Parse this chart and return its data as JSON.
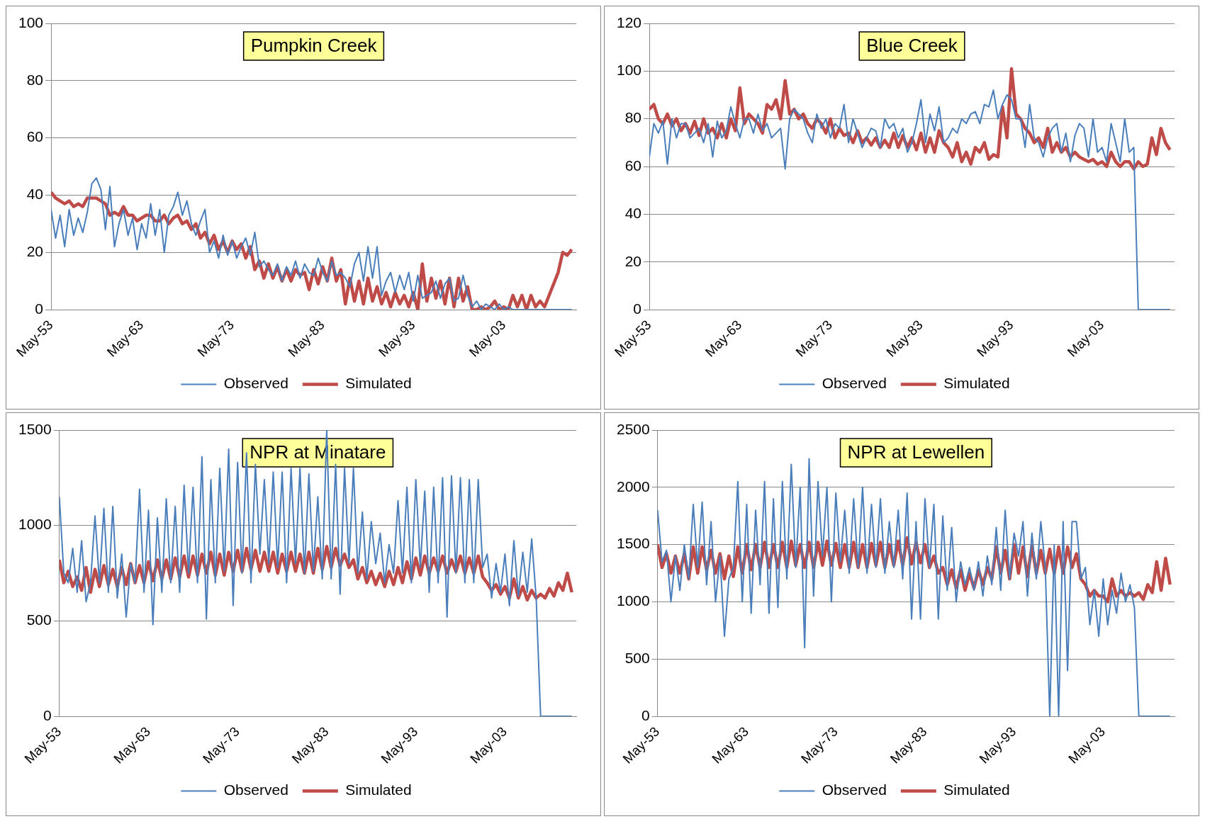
{
  "chart_data": [
    {
      "type": "line",
      "title": "Pumpkin Creek",
      "legend": "bottom",
      "grid": "y",
      "x": [
        "1953-05",
        "1953-11",
        "1954-05",
        "1954-11",
        "1955-05",
        "1955-11",
        "1956-05",
        "1956-11",
        "1957-05",
        "1957-11",
        "1958-05",
        "1958-11",
        "1959-05",
        "1959-11",
        "1960-05",
        "1960-11",
        "1961-05",
        "1961-11",
        "1962-05",
        "1962-11",
        "1963-05",
        "1963-11",
        "1964-05",
        "1964-11",
        "1965-05",
        "1965-11",
        "1966-05",
        "1966-11",
        "1967-05",
        "1967-11",
        "1968-05",
        "1968-11",
        "1969-05",
        "1969-11",
        "1970-05",
        "1970-11",
        "1971-05",
        "1971-11",
        "1972-05",
        "1972-11",
        "1973-05",
        "1973-11",
        "1974-05",
        "1974-11",
        "1975-05",
        "1975-11",
        "1976-05",
        "1976-11",
        "1977-05",
        "1977-11",
        "1978-05",
        "1978-11",
        "1979-05",
        "1979-11",
        "1980-05",
        "1980-11",
        "1981-05",
        "1981-11",
        "1982-05",
        "1982-11",
        "1983-05",
        "1983-11",
        "1984-05",
        "1984-11",
        "1985-05",
        "1985-11",
        "1986-05",
        "1986-11",
        "1987-05",
        "1987-11",
        "1988-05",
        "1988-11",
        "1989-05",
        "1989-11",
        "1990-05",
        "1990-11",
        "1991-05",
        "1991-11",
        "1992-05",
        "1992-11",
        "1993-05",
        "1993-11",
        "1994-05",
        "1994-11",
        "1995-05",
        "1995-11",
        "1996-05",
        "1996-11",
        "1997-05",
        "1997-11",
        "1998-05",
        "1998-11",
        "1999-05",
        "1999-11",
        "2000-05",
        "2000-11",
        "2001-05",
        "2001-11",
        "2002-05",
        "2002-11",
        "2003-05",
        "2003-11",
        "2004-05",
        "2004-11",
        "2005-05",
        "2005-11",
        "2006-05",
        "2006-11",
        "2007-05",
        "2007-11",
        "2008-05",
        "2008-11",
        "2009-05",
        "2009-11",
        "2010-05",
        "2010-11"
      ],
      "xlim": [
        "1953-05",
        "2011-05"
      ],
      "xticks": [
        {
          "value": "1953-05",
          "label": "May-53"
        },
        {
          "value": "1963-05",
          "label": "May-63"
        },
        {
          "value": "1973-05",
          "label": "May-73"
        },
        {
          "value": "1983-05",
          "label": "May-83"
        },
        {
          "value": "1993-05",
          "label": "May-93"
        },
        {
          "value": "2003-05",
          "label": "May-03"
        }
      ],
      "ylim": [
        0,
        100
      ],
      "yticks": [
        0,
        20,
        40,
        60,
        80,
        100
      ],
      "series": [
        {
          "name": "Observed",
          "color": "#4a7ebb",
          "values": [
            35,
            25,
            33,
            22,
            35,
            26,
            32,
            27,
            34,
            44,
            46,
            42,
            28,
            43,
            22,
            30,
            35,
            26,
            32,
            21,
            30,
            25,
            37,
            26,
            35,
            20,
            33,
            36,
            41,
            33,
            38,
            30,
            26,
            31,
            35,
            20,
            24,
            18,
            26,
            19,
            24,
            18,
            22,
            25,
            19,
            27,
            15,
            17,
            14,
            12,
            16,
            10,
            15,
            12,
            17,
            11,
            16,
            13,
            12,
            18,
            13,
            10,
            17,
            12,
            13,
            11,
            8,
            16,
            20,
            10,
            22,
            11,
            22,
            5,
            10,
            13,
            6,
            12,
            7,
            13,
            3,
            12,
            4,
            5,
            6,
            10,
            4,
            9,
            11,
            3,
            4,
            12,
            5,
            1,
            3,
            0,
            2,
            1,
            0,
            2,
            0,
            1,
            0,
            0,
            0,
            0,
            0,
            0,
            0,
            0,
            0,
            0,
            0,
            0,
            0,
            0
          ]
        },
        {
          "name": "Simulated",
          "color": "#be4b48",
          "values": [
            41,
            39,
            38,
            37,
            38,
            36,
            37,
            36,
            39,
            39,
            39,
            38,
            37,
            33,
            34,
            33,
            36,
            33,
            33,
            31,
            32,
            33,
            33,
            31,
            31,
            33,
            30,
            32,
            33,
            30,
            31,
            28,
            30,
            25,
            27,
            23,
            26,
            21,
            24,
            20,
            24,
            21,
            23,
            18,
            22,
            14,
            17,
            11,
            16,
            11,
            15,
            10,
            14,
            10,
            14,
            12,
            13,
            7,
            14,
            9,
            15,
            10,
            18,
            10,
            14,
            2,
            11,
            3,
            10,
            2,
            11,
            3,
            8,
            2,
            6,
            1,
            6,
            2,
            5,
            1,
            6,
            0,
            16,
            3,
            11,
            4,
            10,
            2,
            11,
            1,
            11,
            3,
            8,
            0,
            0,
            1,
            0,
            1,
            3,
            0,
            1,
            0,
            5,
            1,
            5,
            0,
            5,
            1,
            3,
            1,
            5,
            9,
            13,
            20,
            19,
            21
          ]
        }
      ]
    },
    {
      "type": "line",
      "title": "Blue Creek",
      "legend": "bottom",
      "grid": "y",
      "x": [
        "1953-05",
        "1953-11",
        "1954-05",
        "1954-11",
        "1955-05",
        "1955-11",
        "1956-05",
        "1956-11",
        "1957-05",
        "1957-11",
        "1958-05",
        "1958-11",
        "1959-05",
        "1959-11",
        "1960-05",
        "1960-11",
        "1961-05",
        "1961-11",
        "1962-05",
        "1962-11",
        "1963-05",
        "1963-11",
        "1964-05",
        "1964-11",
        "1965-05",
        "1965-11",
        "1966-05",
        "1966-11",
        "1967-05",
        "1967-11",
        "1968-05",
        "1968-11",
        "1969-05",
        "1969-11",
        "1970-05",
        "1970-11",
        "1971-05",
        "1971-11",
        "1972-05",
        "1972-11",
        "1973-05",
        "1973-11",
        "1974-05",
        "1974-11",
        "1975-05",
        "1975-11",
        "1976-05",
        "1976-11",
        "1977-05",
        "1977-11",
        "1978-05",
        "1978-11",
        "1979-05",
        "1979-11",
        "1980-05",
        "1980-11",
        "1981-05",
        "1981-11",
        "1982-05",
        "1982-11",
        "1983-05",
        "1983-11",
        "1984-05",
        "1984-11",
        "1985-05",
        "1985-11",
        "1986-05",
        "1986-11",
        "1987-05",
        "1987-11",
        "1988-05",
        "1988-11",
        "1989-05",
        "1989-11",
        "1990-05",
        "1990-11",
        "1991-05",
        "1991-11",
        "1992-05",
        "1992-11",
        "1993-05",
        "1993-11",
        "1994-05",
        "1994-11",
        "1995-05",
        "1995-11",
        "1996-05",
        "1996-11",
        "1997-05",
        "1997-11",
        "1998-05",
        "1998-11",
        "1999-05",
        "1999-11",
        "2000-05",
        "2000-11",
        "2001-05",
        "2001-11",
        "2002-05",
        "2002-11",
        "2003-05",
        "2003-11",
        "2004-05",
        "2004-11",
        "2005-05",
        "2005-11",
        "2006-05",
        "2006-11",
        "2007-05",
        "2007-11",
        "2008-05",
        "2008-11",
        "2009-05",
        "2009-11",
        "2010-05",
        "2010-11"
      ],
      "xlim": [
        "1953-05",
        "2011-05"
      ],
      "xticks": [
        {
          "value": "1953-05",
          "label": "May-53"
        },
        {
          "value": "1963-05",
          "label": "May-63"
        },
        {
          "value": "1973-05",
          "label": "May-73"
        },
        {
          "value": "1983-05",
          "label": "May-83"
        },
        {
          "value": "1993-05",
          "label": "May-93"
        },
        {
          "value": "2003-05",
          "label": "May-03"
        }
      ],
      "ylim": [
        0,
        120
      ],
      "yticks": [
        0,
        20,
        40,
        60,
        80,
        100,
        120
      ],
      "series": [
        {
          "name": "Observed",
          "color": "#4a7ebb",
          "values": [
            64,
            78,
            74,
            79,
            61,
            80,
            72,
            78,
            78,
            72,
            74,
            76,
            70,
            78,
            64,
            79,
            72,
            75,
            85,
            78,
            72,
            80,
            80,
            74,
            82,
            75,
            78,
            72,
            74,
            76,
            59,
            80,
            84,
            82,
            80,
            74,
            70,
            82,
            76,
            80,
            72,
            78,
            76,
            86,
            70,
            80,
            74,
            68,
            72,
            76,
            75,
            68,
            80,
            76,
            78,
            72,
            76,
            66,
            70,
            78,
            88,
            70,
            82,
            75,
            85,
            70,
            72,
            76,
            74,
            80,
            78,
            82,
            83,
            78,
            86,
            85,
            92,
            80,
            86,
            90,
            88,
            80,
            80,
            68,
            86,
            72,
            70,
            64,
            72,
            76,
            78,
            66,
            74,
            62,
            73,
            78,
            76,
            64,
            80,
            66,
            68,
            62,
            78,
            70,
            62,
            80,
            66,
            68,
            0,
            0,
            0,
            0,
            0,
            0,
            0,
            0
          ]
        },
        {
          "name": "Simulated",
          "color": "#be4b48",
          "values": [
            84,
            86,
            80,
            78,
            82,
            77,
            80,
            75,
            78,
            74,
            79,
            73,
            80,
            74,
            76,
            72,
            78,
            72,
            80,
            75,
            93,
            78,
            82,
            80,
            78,
            74,
            86,
            84,
            88,
            80,
            96,
            82,
            84,
            80,
            82,
            78,
            76,
            80,
            78,
            74,
            80,
            72,
            76,
            73,
            74,
            70,
            75,
            70,
            72,
            69,
            72,
            68,
            71,
            68,
            74,
            68,
            73,
            68,
            72,
            67,
            74,
            66,
            72,
            66,
            75,
            70,
            68,
            64,
            70,
            62,
            66,
            61,
            68,
            66,
            70,
            63,
            65,
            64,
            85,
            72,
            101,
            82,
            80,
            76,
            74,
            70,
            72,
            68,
            76,
            66,
            70,
            66,
            68,
            64,
            66,
            64,
            63,
            62,
            63,
            61,
            62,
            60,
            66,
            62,
            60,
            62,
            62,
            59,
            62,
            60,
            61,
            72,
            65,
            76,
            70,
            67
          ]
        }
      ]
    },
    {
      "type": "line",
      "title": "NPR at Minatare",
      "legend": "bottom",
      "grid": "y",
      "x": [
        "1953-05",
        "1953-11",
        "1954-05",
        "1954-11",
        "1955-05",
        "1955-11",
        "1956-05",
        "1956-11",
        "1957-05",
        "1957-11",
        "1958-05",
        "1958-11",
        "1959-05",
        "1959-11",
        "1960-05",
        "1960-11",
        "1961-05",
        "1961-11",
        "1962-05",
        "1962-11",
        "1963-05",
        "1963-11",
        "1964-05",
        "1964-11",
        "1965-05",
        "1965-11",
        "1966-05",
        "1966-11",
        "1967-05",
        "1967-11",
        "1968-05",
        "1968-11",
        "1969-05",
        "1969-11",
        "1970-05",
        "1970-11",
        "1971-05",
        "1971-11",
        "1972-05",
        "1972-11",
        "1973-05",
        "1973-11",
        "1974-05",
        "1974-11",
        "1975-05",
        "1975-11",
        "1976-05",
        "1976-11",
        "1977-05",
        "1977-11",
        "1978-05",
        "1978-11",
        "1979-05",
        "1979-11",
        "1980-05",
        "1980-11",
        "1981-05",
        "1981-11",
        "1982-05",
        "1982-11",
        "1983-05",
        "1983-11",
        "1984-05",
        "1984-11",
        "1985-05",
        "1985-11",
        "1986-05",
        "1986-11",
        "1987-05",
        "1987-11",
        "1988-05",
        "1988-11",
        "1989-05",
        "1989-11",
        "1990-05",
        "1990-11",
        "1991-05",
        "1991-11",
        "1992-05",
        "1992-11",
        "1993-05",
        "1993-11",
        "1994-05",
        "1994-11",
        "1995-05",
        "1995-11",
        "1996-05",
        "1996-11",
        "1997-05",
        "1997-11",
        "1998-05",
        "1998-11",
        "1999-05",
        "1999-11",
        "2000-05",
        "2000-11",
        "2001-05",
        "2001-11",
        "2002-05",
        "2002-11",
        "2003-05",
        "2003-11",
        "2004-05",
        "2004-11",
        "2005-05",
        "2005-11",
        "2006-05",
        "2006-11",
        "2007-05",
        "2007-11",
        "2008-05",
        "2008-11",
        "2009-05",
        "2009-11",
        "2010-05",
        "2010-11"
      ],
      "xlim": [
        "1953-05",
        "2011-05"
      ],
      "xticks": [
        {
          "value": "1953-05",
          "label": "May-53"
        },
        {
          "value": "1963-05",
          "label": "May-63"
        },
        {
          "value": "1973-05",
          "label": "May-73"
        },
        {
          "value": "1983-05",
          "label": "May-83"
        },
        {
          "value": "1993-05",
          "label": "May-93"
        },
        {
          "value": "2003-05",
          "label": "May-03"
        }
      ],
      "ylim": [
        0,
        1500
      ],
      "yticks": [
        0,
        500,
        1000,
        1500
      ],
      "series": [
        {
          "name": "Observed",
          "color": "#4a7ebb",
          "values": [
            1150,
            750,
            700,
            880,
            650,
            920,
            600,
            700,
            1050,
            700,
            1090,
            650,
            1100,
            620,
            850,
            520,
            800,
            700,
            1190,
            650,
            1080,
            480,
            1040,
            650,
            1140,
            700,
            1100,
            650,
            1210,
            750,
            1200,
            700,
            1360,
            510,
            1240,
            700,
            1300,
            760,
            1400,
            580,
            1330,
            750,
            1380,
            700,
            1320,
            850,
            1240,
            800,
            1280,
            780,
            1280,
            700,
            1300,
            800,
            1300,
            750,
            1270,
            760,
            1150,
            720,
            1500,
            720,
            1320,
            640,
            1300,
            800,
            1300,
            750,
            1070,
            720,
            1020,
            800,
            960,
            700,
            900,
            750,
            1130,
            750,
            1200,
            700,
            1240,
            780,
            1180,
            650,
            1200,
            700,
            1250,
            520,
            1260,
            750,
            1250,
            700,
            1240,
            700,
            1240,
            780,
            850,
            620,
            800,
            650,
            850,
            580,
            920,
            630,
            860,
            650,
            930,
            620,
            0,
            0,
            0,
            0,
            0,
            0,
            0,
            0
          ]
        },
        {
          "name": "Simulated",
          "color": "#be4b48",
          "values": [
            820,
            700,
            760,
            680,
            730,
            660,
            780,
            650,
            770,
            680,
            790,
            690,
            770,
            680,
            780,
            690,
            800,
            700,
            790,
            700,
            810,
            710,
            820,
            720,
            820,
            720,
            830,
            730,
            840,
            730,
            840,
            740,
            850,
            750,
            860,
            740,
            850,
            740,
            860,
            760,
            870,
            760,
            880,
            770,
            870,
            760,
            860,
            760,
            860,
            750,
            850,
            760,
            860,
            760,
            850,
            750,
            860,
            750,
            880,
            770,
            890,
            780,
            880,
            790,
            850,
            780,
            820,
            720,
            780,
            700,
            760,
            690,
            750,
            680,
            760,
            690,
            780,
            700,
            810,
            720,
            830,
            740,
            840,
            750,
            830,
            760,
            840,
            750,
            820,
            760,
            840,
            750,
            830,
            750,
            840,
            730,
            700,
            660,
            690,
            640,
            680,
            620,
            720,
            620,
            680,
            610,
            660,
            620,
            640,
            620,
            670,
            630,
            700,
            660,
            750,
            650
          ]
        }
      ]
    },
    {
      "type": "line",
      "title": "NPR at Lewellen",
      "legend": "bottom",
      "grid": "y",
      "x": [
        "1953-05",
        "1953-11",
        "1954-05",
        "1954-11",
        "1955-05",
        "1955-11",
        "1956-05",
        "1956-11",
        "1957-05",
        "1957-11",
        "1958-05",
        "1958-11",
        "1959-05",
        "1959-11",
        "1960-05",
        "1960-11",
        "1961-05",
        "1961-11",
        "1962-05",
        "1962-11",
        "1963-05",
        "1963-11",
        "1964-05",
        "1964-11",
        "1965-05",
        "1965-11",
        "1966-05",
        "1966-11",
        "1967-05",
        "1967-11",
        "1968-05",
        "1968-11",
        "1969-05",
        "1969-11",
        "1970-05",
        "1970-11",
        "1971-05",
        "1971-11",
        "1972-05",
        "1972-11",
        "1973-05",
        "1973-11",
        "1974-05",
        "1974-11",
        "1975-05",
        "1975-11",
        "1976-05",
        "1976-11",
        "1977-05",
        "1977-11",
        "1978-05",
        "1978-11",
        "1979-05",
        "1979-11",
        "1980-05",
        "1980-11",
        "1981-05",
        "1981-11",
        "1982-05",
        "1982-11",
        "1983-05",
        "1983-11",
        "1984-05",
        "1984-11",
        "1985-05",
        "1985-11",
        "1986-05",
        "1986-11",
        "1987-05",
        "1987-11",
        "1988-05",
        "1988-11",
        "1989-05",
        "1989-11",
        "1990-05",
        "1990-11",
        "1991-05",
        "1991-11",
        "1992-05",
        "1992-11",
        "1993-05",
        "1993-11",
        "1994-05",
        "1994-11",
        "1995-05",
        "1995-11",
        "1996-05",
        "1996-11",
        "1997-05",
        "1997-11",
        "1998-05",
        "1998-11",
        "1999-05",
        "1999-11",
        "2000-05",
        "2000-11",
        "2001-05",
        "2001-11",
        "2002-05",
        "2002-11",
        "2003-05",
        "2003-11",
        "2004-05",
        "2004-11",
        "2005-05",
        "2005-11",
        "2006-05",
        "2006-11",
        "2007-05",
        "2007-11",
        "2008-05",
        "2008-11",
        "2009-05",
        "2009-11",
        "2010-05",
        "2010-11"
      ],
      "xlim": [
        "1953-05",
        "2011-05"
      ],
      "xticks": [
        {
          "value": "1953-05",
          "label": "May-53"
        },
        {
          "value": "1963-05",
          "label": "May-63"
        },
        {
          "value": "1973-05",
          "label": "May-73"
        },
        {
          "value": "1983-05",
          "label": "May-83"
        },
        {
          "value": "1993-05",
          "label": "May-93"
        },
        {
          "value": "2003-05",
          "label": "May-03"
        }
      ],
      "ylim": [
        0,
        2500
      ],
      "yticks": [
        0,
        500,
        1000,
        1500,
        2000,
        2500
      ],
      "series": [
        {
          "name": "Observed",
          "color": "#4a7ebb",
          "values": [
            1800,
            1350,
            1450,
            1000,
            1400,
            1100,
            1500,
            1200,
            1850,
            1300,
            1870,
            1150,
            1700,
            1000,
            1400,
            700,
            1200,
            1300,
            2050,
            1000,
            1850,
            900,
            1800,
            1150,
            2050,
            900,
            1900,
            950,
            2050,
            1200,
            2200,
            1300,
            2000,
            600,
            2250,
            1050,
            2050,
            1400,
            2000,
            1000,
            1950,
            1350,
            1800,
            1250,
            1900,
            1300,
            2000,
            1250,
            1850,
            1300,
            1900,
            1250,
            1700,
            1300,
            1800,
            1200,
            1950,
            850,
            1700,
            850,
            1900,
            1300,
            1850,
            850,
            1750,
            1100,
            1650,
            1000,
            1350,
            1150,
            1300,
            1100,
            1350,
            1050,
            1400,
            1150,
            1650,
            1100,
            1800,
            1200,
            1600,
            1400,
            1700,
            1050,
            1600,
            1200,
            1700,
            1300,
            0,
            1500,
            0,
            1700,
            400,
            1700,
            1700,
            1200,
            1300,
            800,
            1100,
            700,
            1200,
            800,
            1100,
            900,
            1250,
            1000,
            1150,
            950,
            0,
            0,
            0,
            0,
            0,
            0,
            0,
            0
          ]
        },
        {
          "name": "Simulated",
          "color": "#be4b48",
          "values": [
            1500,
            1300,
            1420,
            1250,
            1400,
            1250,
            1420,
            1200,
            1480,
            1250,
            1480,
            1280,
            1450,
            1250,
            1420,
            1200,
            1400,
            1220,
            1480,
            1250,
            1500,
            1280,
            1500,
            1300,
            1520,
            1300,
            1500,
            1300,
            1520,
            1300,
            1530,
            1320,
            1500,
            1300,
            1520,
            1300,
            1520,
            1320,
            1530,
            1320,
            1510,
            1300,
            1500,
            1300,
            1520,
            1300,
            1500,
            1300,
            1510,
            1320,
            1520,
            1300,
            1500,
            1320,
            1530,
            1320,
            1560,
            1330,
            1520,
            1340,
            1500,
            1300,
            1400,
            1250,
            1300,
            1150,
            1280,
            1120,
            1280,
            1100,
            1250,
            1120,
            1280,
            1150,
            1300,
            1200,
            1480,
            1250,
            1450,
            1200,
            1500,
            1250,
            1480,
            1220,
            1490,
            1250,
            1450,
            1250,
            1460,
            1250,
            1480,
            1250,
            1480,
            1300,
            1420,
            1200,
            1150,
            1050,
            1100,
            1050,
            1050,
            1000,
            1200,
            1050,
            1100,
            1050,
            1080,
            1050,
            1080,
            1020,
            1150,
            1080,
            1350,
            1100,
            1380,
            1150
          ]
        }
      ]
    }
  ]
}
